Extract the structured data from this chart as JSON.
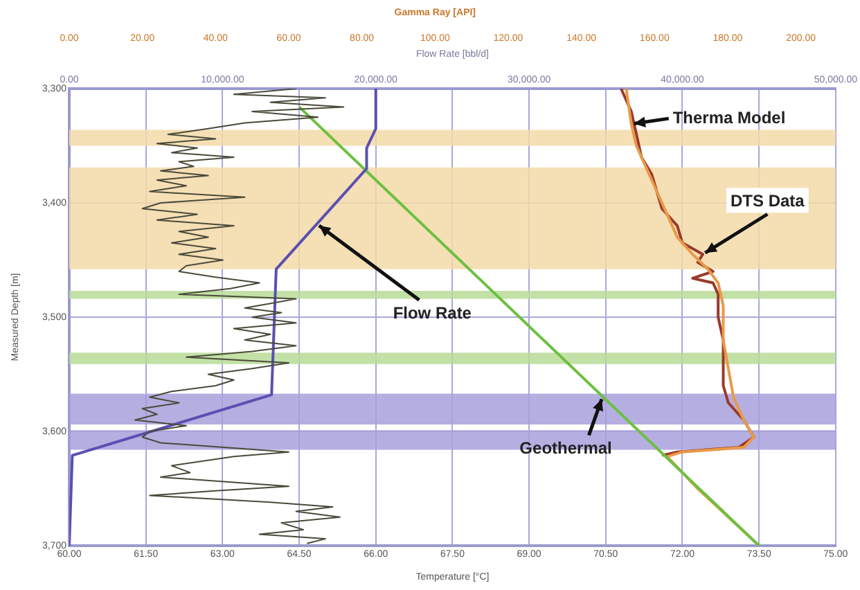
{
  "chart_data": [
    {
      "type": "line",
      "orientation": "horizontal",
      "xlabel": "Gamma Ray [API]",
      "tick_labels": "x",
      "marker": "none",
      "xlim": [
        0,
        200
      ],
      "xticks": [
        {
          "value": 0,
          "label": "0.00"
        },
        {
          "value": 20,
          "label": "20.00"
        },
        {
          "value": 40,
          "label": "40.00"
        },
        {
          "value": 60,
          "label": "60.00"
        },
        {
          "value": 80,
          "label": "80.00"
        },
        {
          "value": 100,
          "label": "100.00"
        },
        {
          "value": 120,
          "label": "120.00"
        },
        {
          "value": 140,
          "label": "140.00"
        },
        {
          "value": 160,
          "label": "160.00"
        },
        {
          "value": 180,
          "label": "180.00"
        },
        {
          "value": 200,
          "label": "200.00"
        }
      ],
      "ylim": [
        3700,
        3300
      ],
      "yticks": [
        {
          "value": 3300,
          "label": null
        },
        {
          "value": 3400,
          "label": null
        },
        {
          "value": 3500,
          "label": null
        },
        {
          "value": 3600,
          "label": null
        },
        {
          "value": 3700,
          "label": null
        }
      ],
      "series": [
        {
          "color": "#4a4a3a",
          "x": [
            3300,
            3305,
            3308,
            3312,
            3316,
            3320,
            3325,
            3330,
            3335,
            3340,
            3344,
            3348,
            3352,
            3356,
            3360,
            3364,
            3368,
            3372,
            3376,
            3380,
            3385,
            3390,
            3395,
            3400,
            3405,
            3410,
            3415,
            3420,
            3425,
            3430,
            3435,
            3440,
            3445,
            3450,
            3455,
            3460,
            3465,
            3470,
            3475,
            3480,
            3484,
            3488,
            3492,
            3496,
            3500,
            3505,
            3510,
            3515,
            3520,
            3525,
            3530,
            3535,
            3540,
            3545,
            3550,
            3555,
            3560,
            3565,
            3570,
            3575,
            3580,
            3585,
            3590,
            3595,
            3600,
            3605,
            3610,
            3618,
            3622,
            3630,
            3636,
            3640,
            3648,
            3652,
            3656,
            3662,
            3666,
            3670,
            3675,
            3680,
            3686,
            3690,
            3694,
            3698
          ],
          "values": [
            62,
            45,
            70,
            55,
            75,
            50,
            68,
            48,
            38,
            27,
            40,
            24,
            35,
            28,
            45,
            30,
            34,
            25,
            38,
            24,
            32,
            22,
            48,
            25,
            20,
            35,
            24,
            45,
            30,
            38,
            28,
            40,
            30,
            42,
            32,
            30,
            40,
            52,
            44,
            30,
            62,
            55,
            48,
            58,
            50,
            62,
            45,
            55,
            48,
            62,
            50,
            32,
            60,
            50,
            38,
            45,
            40,
            28,
            22,
            30,
            20,
            24,
            18,
            32,
            22,
            20,
            25,
            60,
            45,
            28,
            33,
            25,
            60,
            40,
            22,
            55,
            72,
            62,
            74,
            58,
            64,
            52,
            70,
            65
          ]
        }
      ]
    },
    {
      "type": "line",
      "orientation": "horizontal",
      "xlabel": "Temperature [°C]",
      "ylabel": "Measured Depth [m]",
      "x2label": "Flow Rate [bbl/d]",
      "xlim": [
        60,
        75
      ],
      "xticks": [
        {
          "value": 60,
          "label": "60.00"
        },
        {
          "value": 61.5,
          "label": "61.50"
        },
        {
          "value": 63,
          "label": "63.00"
        },
        {
          "value": 64.5,
          "label": "64.50"
        },
        {
          "value": 66,
          "label": "66.00"
        },
        {
          "value": 67.5,
          "label": "67.50"
        },
        {
          "value": 69,
          "label": "69.00"
        },
        {
          "value": 70.5,
          "label": "70.50"
        },
        {
          "value": 72,
          "label": "72.00"
        },
        {
          "value": 73.5,
          "label": "73.50"
        },
        {
          "value": 75,
          "label": "75.00"
        }
      ],
      "x2lim": [
        0,
        50000
      ],
      "x2ticks": [
        {
          "value": 0,
          "label": "0.00"
        },
        {
          "value": 10000,
          "label": "10,000.00"
        },
        {
          "value": 20000,
          "label": "20,000.00"
        },
        {
          "value": 30000,
          "label": "30,000.00"
        },
        {
          "value": 40000,
          "label": "40,000.00"
        },
        {
          "value": 50000,
          "label": "50,000.00"
        }
      ],
      "ylim": [
        3700,
        3300
      ],
      "yticks": [
        {
          "value": 3300,
          "label": "3,300"
        },
        {
          "value": 3400,
          "label": "3,400"
        },
        {
          "value": 3500,
          "label": "3,500"
        },
        {
          "value": 3600,
          "label": "3,600"
        },
        {
          "value": 3700,
          "label": "3,700"
        }
      ],
      "grid": true,
      "marker": "none",
      "bands": [
        {
          "axis": "y",
          "from": 3336,
          "to": 3350,
          "color": "#f3d9a8"
        },
        {
          "axis": "y",
          "from": 3369,
          "to": 3458,
          "color": "#f3d9a8"
        },
        {
          "axis": "y",
          "from": 3477,
          "to": 3484,
          "color": "#b8dc98"
        },
        {
          "axis": "y",
          "from": 3531,
          "to": 3541,
          "color": "#b8dc98"
        },
        {
          "axis": "y",
          "from": 3567,
          "to": 3594,
          "color": "#a8a0dc"
        },
        {
          "axis": "y",
          "from": 3599,
          "to": 3616,
          "color": "#a8a0dc"
        }
      ],
      "series": [
        {
          "name": "Flow Rate",
          "axis": "x2",
          "color": "#5a50b0",
          "x": [
            3300,
            3335,
            3352,
            3370,
            3458,
            3568,
            3621,
            3700
          ],
          "values": [
            20000,
            20000,
            19400,
            19400,
            13500,
            13200,
            200,
            0
          ]
        },
        {
          "name": "Geothermal",
          "color": "#6cc040",
          "x": [
            3316,
            3700
          ],
          "values": [
            64.5,
            73.5
          ]
        },
        {
          "name": "Therma Model",
          "color": "#e89a48",
          "x": [
            3300,
            3331,
            3350,
            3380,
            3410,
            3430,
            3445,
            3458,
            3470,
            3490,
            3520,
            3545,
            3570,
            3590,
            3605,
            3614,
            3618,
            3622,
            3650,
            3700
          ],
          "values": [
            70.9,
            71.0,
            71.1,
            71.4,
            71.7,
            71.9,
            72.2,
            72.5,
            72.7,
            72.8,
            72.8,
            72.9,
            73.0,
            73.2,
            73.4,
            73.2,
            72.0,
            71.7,
            72.3,
            73.5
          ]
        },
        {
          "name": "DTS Data",
          "color": "#9a3a2a",
          "x": [
            3300,
            3320,
            3340,
            3360,
            3375,
            3390,
            3405,
            3420,
            3435,
            3445,
            3452,
            3460,
            3466,
            3470,
            3480,
            3500,
            3520,
            3540,
            3560,
            3575,
            3590,
            3605,
            3614,
            3618,
            3621
          ],
          "values": [
            70.8,
            71.0,
            71.1,
            71.2,
            71.4,
            71.5,
            71.6,
            71.9,
            72.0,
            72.4,
            72.3,
            72.6,
            72.2,
            72.6,
            72.7,
            72.7,
            72.8,
            72.8,
            72.8,
            72.9,
            73.2,
            73.4,
            73.1,
            71.9,
            71.6
          ]
        }
      ]
    }
  ]
}
